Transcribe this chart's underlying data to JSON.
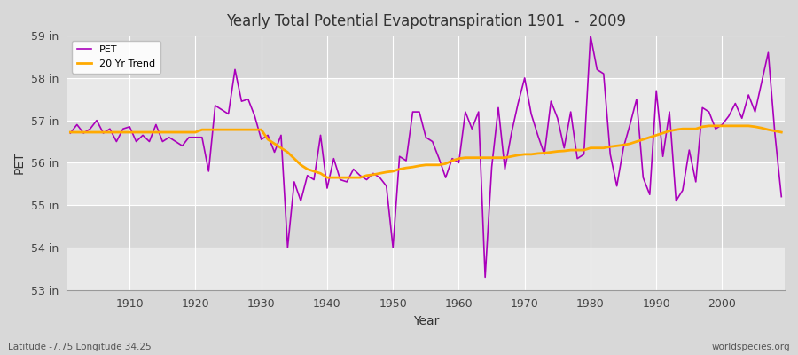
{
  "title": "Yearly Total Potential Evapotranspiration 1901  -  2009",
  "xlabel": "Year",
  "ylabel": "PET",
  "lat_lon_label": "Latitude -7.75 Longitude 34.25",
  "source_label": "worldspecies.org",
  "pet_color": "#aa00bb",
  "trend_color": "#ffaa00",
  "bg_color": "#d8d8d8",
  "plot_bg_color": "#d8d8d8",
  "ylim": [
    53,
    59
  ],
  "ytick_labels": [
    "53 in",
    "54 in",
    "55 in",
    "56 in",
    "57 in",
    "58 in",
    "59 in"
  ],
  "ytick_values": [
    53,
    54,
    55,
    56,
    57,
    58,
    59
  ],
  "years": [
    1901,
    1902,
    1903,
    1904,
    1905,
    1906,
    1907,
    1908,
    1909,
    1910,
    1911,
    1912,
    1913,
    1914,
    1915,
    1916,
    1917,
    1918,
    1919,
    1920,
    1921,
    1922,
    1923,
    1924,
    1925,
    1926,
    1927,
    1928,
    1929,
    1930,
    1931,
    1932,
    1933,
    1934,
    1935,
    1936,
    1937,
    1938,
    1939,
    1940,
    1941,
    1942,
    1943,
    1944,
    1945,
    1946,
    1947,
    1948,
    1949,
    1950,
    1951,
    1952,
    1953,
    1954,
    1955,
    1956,
    1957,
    1958,
    1959,
    1960,
    1961,
    1962,
    1963,
    1964,
    1965,
    1966,
    1967,
    1968,
    1969,
    1970,
    1971,
    1972,
    1973,
    1974,
    1975,
    1976,
    1977,
    1978,
    1979,
    1980,
    1981,
    1982,
    1983,
    1984,
    1985,
    1986,
    1987,
    1988,
    1989,
    1990,
    1991,
    1992,
    1993,
    1994,
    1995,
    1996,
    1997,
    1998,
    1999,
    2000,
    2001,
    2002,
    2003,
    2004,
    2005,
    2006,
    2007,
    2008,
    2009
  ],
  "pet_values": [
    56.7,
    56.9,
    56.7,
    56.8,
    57.0,
    56.7,
    56.8,
    56.5,
    56.8,
    56.85,
    56.5,
    56.65,
    56.5,
    56.9,
    56.5,
    56.6,
    56.5,
    56.4,
    56.6,
    56.6,
    56.6,
    55.8,
    57.35,
    57.25,
    57.15,
    58.2,
    57.45,
    57.5,
    57.1,
    56.55,
    56.65,
    56.25,
    56.65,
    54.0,
    55.55,
    55.1,
    55.7,
    55.6,
    56.65,
    55.4,
    56.1,
    55.6,
    55.55,
    55.85,
    55.7,
    55.6,
    55.75,
    55.65,
    55.45,
    54.0,
    56.15,
    56.05,
    57.2,
    57.2,
    56.6,
    56.5,
    56.1,
    55.65,
    56.1,
    56.0,
    57.2,
    56.8,
    57.2,
    53.3,
    55.9,
    57.3,
    55.85,
    56.7,
    57.4,
    58.0,
    57.15,
    56.65,
    56.2,
    57.45,
    57.05,
    56.35,
    57.2,
    56.1,
    56.2,
    59.0,
    58.2,
    58.1,
    56.2,
    55.45,
    56.35,
    56.9,
    57.5,
    55.65,
    55.25,
    57.7,
    56.15,
    57.2,
    55.1,
    55.35,
    56.3,
    55.55,
    57.3,
    57.2,
    56.8,
    56.9,
    57.1,
    57.4,
    57.05,
    57.6,
    57.2,
    57.9,
    58.6,
    56.7,
    55.2
  ],
  "trend_values": [
    56.72,
    56.72,
    56.72,
    56.72,
    56.72,
    56.72,
    56.72,
    56.72,
    56.72,
    56.72,
    56.72,
    56.72,
    56.72,
    56.72,
    56.72,
    56.72,
    56.72,
    56.72,
    56.72,
    56.72,
    56.78,
    56.78,
    56.78,
    56.78,
    56.78,
    56.78,
    56.78,
    56.78,
    56.78,
    56.78,
    56.55,
    56.45,
    56.35,
    56.25,
    56.1,
    55.95,
    55.85,
    55.8,
    55.75,
    55.65,
    55.65,
    55.65,
    55.65,
    55.65,
    55.65,
    55.7,
    55.72,
    55.75,
    55.78,
    55.8,
    55.85,
    55.88,
    55.9,
    55.93,
    55.95,
    55.95,
    55.95,
    55.98,
    56.05,
    56.1,
    56.12,
    56.12,
    56.12,
    56.12,
    56.12,
    56.12,
    56.12,
    56.15,
    56.18,
    56.2,
    56.2,
    56.22,
    56.23,
    56.25,
    56.27,
    56.28,
    56.3,
    56.3,
    56.3,
    56.35,
    56.35,
    56.35,
    56.38,
    56.4,
    56.42,
    56.45,
    56.5,
    56.55,
    56.6,
    56.65,
    56.7,
    56.75,
    56.78,
    56.8,
    56.8,
    56.8,
    56.85,
    56.87,
    56.87,
    56.87,
    56.87,
    56.87,
    56.87,
    56.87,
    56.85,
    56.82,
    56.78,
    56.75,
    56.72
  ]
}
